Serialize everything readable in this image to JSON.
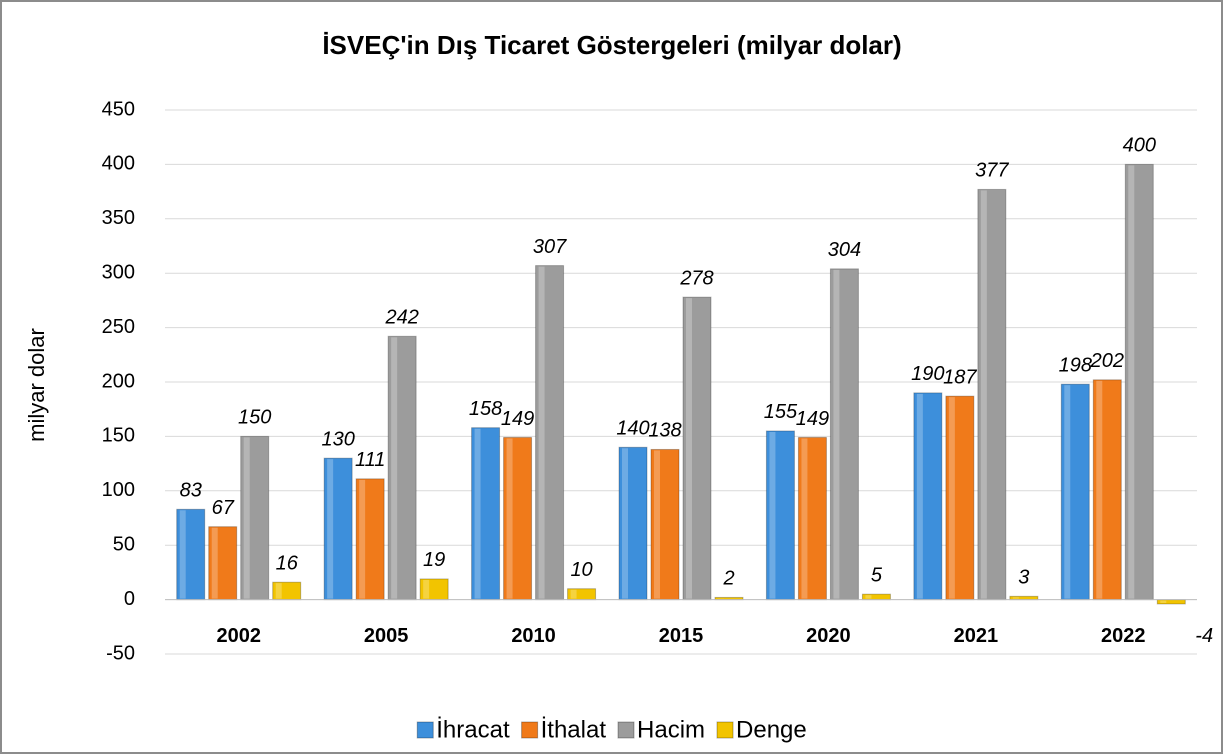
{
  "chart_data": {
    "type": "bar",
    "title": "İSVEÇ'in Dış Ticaret Göstergeleri (milyar dolar)",
    "y_label": "milyar dolar",
    "categories": [
      "2002",
      "2005",
      "2010",
      "2015",
      "2020",
      "2021",
      "2022"
    ],
    "series": [
      {
        "name": "İhracat",
        "color": "#3d8fdb",
        "values": [
          83,
          130,
          158,
          140,
          155,
          190,
          198
        ]
      },
      {
        "name": "İthalat",
        "color": "#f07a1a",
        "values": [
          67,
          111,
          149,
          138,
          149,
          187,
          202
        ]
      },
      {
        "name": "Hacim",
        "color": "#9c9c9c",
        "values": [
          150,
          242,
          307,
          278,
          304,
          377,
          400
        ]
      },
      {
        "name": "Denge",
        "color": "#f2c400",
        "values": [
          16,
          19,
          10,
          2,
          5,
          3,
          -4
        ]
      }
    ],
    "ylim": [
      -50,
      450
    ],
    "yticks": [
      -50,
      0,
      50,
      100,
      150,
      200,
      250,
      300,
      350,
      400,
      450
    ],
    "grid": true,
    "legend": "bottom"
  }
}
